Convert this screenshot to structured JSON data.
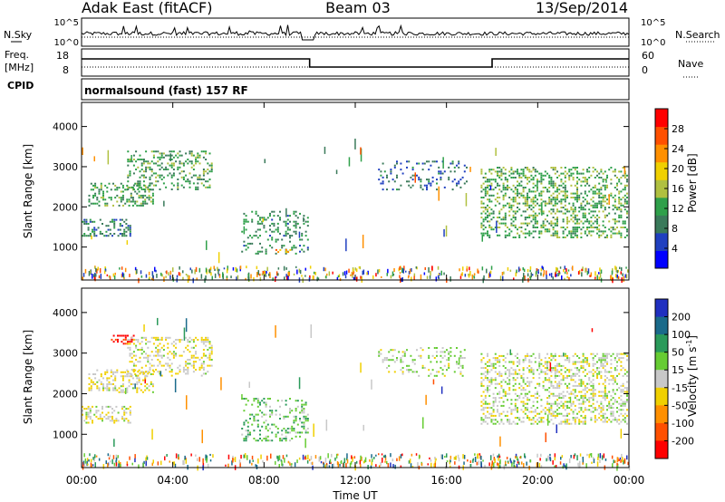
{
  "header": {
    "site": "Adak East (fitACF)",
    "beam": "Beam 03",
    "date": "13/Sep/2014"
  },
  "noise_panel": {
    "left_label": "N.Sky",
    "right_label": "N.Search",
    "left_ticks": [
      "10^5",
      "10^0"
    ],
    "right_ticks": [
      "10^5",
      "10^0"
    ]
  },
  "freq_panel": {
    "left_label_1": "Freq.",
    "left_label_2": "[MHz]",
    "left_ticks": [
      "18",
      "8"
    ],
    "right_label": "Nave",
    "right_ticks": [
      "60",
      "0"
    ],
    "cpid_label": "CPID"
  },
  "cpid": {
    "text": "normalsound (fast) 157 RF"
  },
  "chart_data": [
    {
      "type": "heatmap",
      "panel": "power",
      "ylabel": "Slant Range [km]",
      "yticks": [
        1000,
        2000,
        3000,
        4000
      ],
      "ylim": [
        180,
        4600
      ],
      "xlim_hours": [
        0,
        24
      ],
      "colorbar_label": "Power [dB]",
      "colorbar_ticks": [
        "4",
        "8",
        "12",
        "16",
        "20",
        "24",
        "28"
      ],
      "colorbar_colors": [
        "#0000ff",
        "#2040c0",
        "#3a7a5a",
        "#2fa04a",
        "#b0c040",
        "#f0d000",
        "#ff9000",
        "#ff5000",
        "#ff0000"
      ],
      "scatter_regions": [
        {
          "t": [
            0.0,
            2.2
          ],
          "r": [
            1250,
            1700
          ],
          "level": 0.25,
          "density": 0.7
        },
        {
          "t": [
            0.3,
            3.2
          ],
          "r": [
            2000,
            2600
          ],
          "level": 0.35,
          "density": 0.6
        },
        {
          "t": [
            2.0,
            5.8
          ],
          "r": [
            2400,
            3400
          ],
          "level": 0.35,
          "density": 0.55
        },
        {
          "t": [
            7.0,
            10.0
          ],
          "r": [
            800,
            1900
          ],
          "level": 0.3,
          "density": 0.4
        },
        {
          "t": [
            8.5,
            9.5
          ],
          "r": [
            820,
            950
          ],
          "level": 0.75,
          "density": 0.8
        },
        {
          "t": [
            13.0,
            17.0
          ],
          "r": [
            2400,
            3150
          ],
          "level": 0.2,
          "density": 0.3
        },
        {
          "t": [
            17.5,
            24.0
          ],
          "r": [
            1200,
            3000
          ],
          "level": 0.4,
          "density": 0.65
        }
      ]
    },
    {
      "type": "heatmap",
      "panel": "velocity",
      "ylabel": "Slant Range [km]",
      "yticks": [
        1000,
        2000,
        3000,
        4000
      ],
      "ylim": [
        180,
        4600
      ],
      "xlim_hours": [
        0,
        24
      ],
      "xticks": [
        "00:00",
        "04:00",
        "08:00",
        "12:00",
        "16:00",
        "20:00",
        "00:00"
      ],
      "xlabel": "Time UT",
      "colorbar_label": "Velocity [m s^-1]",
      "colorbar_ticks": [
        "200",
        "100",
        "50",
        "15",
        "-15",
        "-50",
        "-100",
        "-200"
      ],
      "colorbar_colors": [
        "#2030c0",
        "#1a6a8a",
        "#2a9a5a",
        "#66cc33",
        "#c8c8c8",
        "#f0d000",
        "#ff9000",
        "#ff5000",
        "#ff0000"
      ],
      "scatter_regions": [
        {
          "t": [
            0.0,
            2.2
          ],
          "r": [
            1250,
            1700
          ],
          "level": 0.55,
          "density": 0.7
        },
        {
          "t": [
            0.3,
            3.2
          ],
          "r": [
            2000,
            2600
          ],
          "level": 0.55,
          "density": 0.6
        },
        {
          "t": [
            1.2,
            2.4
          ],
          "r": [
            3200,
            3450
          ],
          "level": 1.0,
          "density": 0.7
        },
        {
          "t": [
            2.0,
            5.8
          ],
          "r": [
            2400,
            3400
          ],
          "level": 0.55,
          "density": 0.55
        },
        {
          "t": [
            7.0,
            10.0
          ],
          "r": [
            800,
            1900
          ],
          "level": 0.35,
          "density": 0.5
        },
        {
          "t": [
            13.0,
            17.0
          ],
          "r": [
            2400,
            3150
          ],
          "level": 0.45,
          "density": 0.3
        },
        {
          "t": [
            17.5,
            24.0
          ],
          "r": [
            1200,
            3000
          ],
          "level": 0.5,
          "density": 0.65
        }
      ]
    }
  ]
}
